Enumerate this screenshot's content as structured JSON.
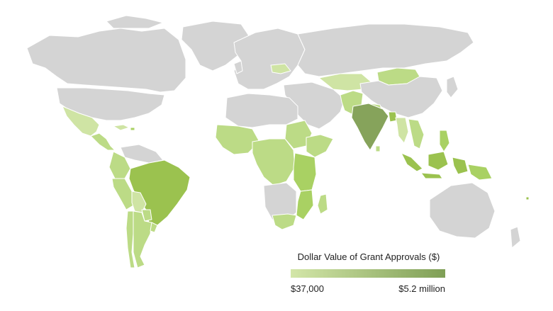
{
  "legend": {
    "title": "Dollar Value of Grant Approvals ($)",
    "min_label": "$37,000",
    "max_label": "$5.2 million",
    "color_min": "#d3e6a8",
    "color_max": "#7f9f56"
  },
  "colors": {
    "no_data": "#d4d4d4",
    "border": "#ffffff",
    "level_low": "#cfe4a4",
    "level_mid_low": "#bcdb86",
    "level_mid": "#a9d163",
    "level_high": "#9bc24f",
    "level_max": "#86a35b"
  },
  "highlighted_regions": [
    {
      "name": "Mexico",
      "level": "low"
    },
    {
      "name": "Brazil",
      "level": "high"
    },
    {
      "name": "Peru",
      "level": "mid_low"
    },
    {
      "name": "Colombia",
      "level": "mid_low"
    },
    {
      "name": "Bolivia",
      "level": "low"
    },
    {
      "name": "Argentina",
      "level": "mid_low"
    },
    {
      "name": "Chile",
      "level": "mid_low"
    },
    {
      "name": "Paraguay",
      "level": "mid_low"
    },
    {
      "name": "Uruguay",
      "level": "mid_low"
    },
    {
      "name": "West Africa",
      "level": "mid_low"
    },
    {
      "name": "Sudan",
      "level": "mid_low"
    },
    {
      "name": "Ethiopia",
      "level": "mid_low"
    },
    {
      "name": "Kenya",
      "level": "mid"
    },
    {
      "name": "Tanzania",
      "level": "mid"
    },
    {
      "name": "Mozambique",
      "level": "mid"
    },
    {
      "name": "Madagascar",
      "level": "mid_low"
    },
    {
      "name": "South Africa",
      "level": "mid_low"
    },
    {
      "name": "India",
      "level": "max"
    },
    {
      "name": "Nepal",
      "level": "mid_low"
    },
    {
      "name": "Bangladesh",
      "level": "high"
    },
    {
      "name": "Mongolia",
      "level": "mid_low"
    },
    {
      "name": "Indonesia",
      "level": "high"
    },
    {
      "name": "Philippines",
      "level": "mid"
    },
    {
      "name": "Papua New Guinea",
      "level": "mid"
    },
    {
      "name": "Vietnam",
      "level": "mid_low"
    },
    {
      "name": "Ukraine",
      "level": "low"
    }
  ]
}
